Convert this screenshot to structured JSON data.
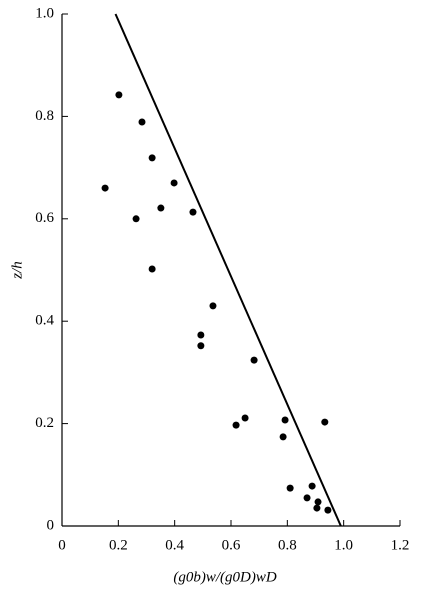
{
  "chart_data": {
    "type": "scatter",
    "x_label": "(g0b)w/(g0D)wD",
    "y_label": "z/h",
    "x": [
      0.202,
      0.284,
      0.32,
      0.398,
      0.153,
      0.351,
      0.465,
      0.263,
      0.32,
      0.536,
      0.493,
      0.493,
      0.682,
      0.65,
      0.618,
      0.792,
      0.933,
      0.785,
      0.81,
      0.888,
      0.87,
      0.909,
      0.905,
      0.944
    ],
    "values": [
      0.842,
      0.789,
      0.719,
      0.67,
      0.66,
      0.621,
      0.613,
      0.6,
      0.502,
      0.43,
      0.373,
      0.352,
      0.324,
      0.211,
      0.197,
      0.207,
      0.203,
      0.174,
      0.074,
      0.078,
      0.055,
      0.047,
      0.035,
      0.031
    ],
    "color": "#000000",
    "line": {
      "x": [
        0.19,
        0.99
      ],
      "y": [
        1.0,
        0
      ]
    },
    "xlim": [
      0,
      1.2
    ],
    "ylim": [
      0,
      1.0
    ],
    "xticks": [
      0,
      0.2,
      0.4,
      0.6,
      0.8,
      {
        "value": 1,
        "label": "1.0"
      },
      1.2
    ],
    "yticks": [
      0,
      0.2,
      0.4,
      0.6,
      0.8,
      {
        "value": 1,
        "label": "1.0"
      }
    ],
    "grid": false
  }
}
